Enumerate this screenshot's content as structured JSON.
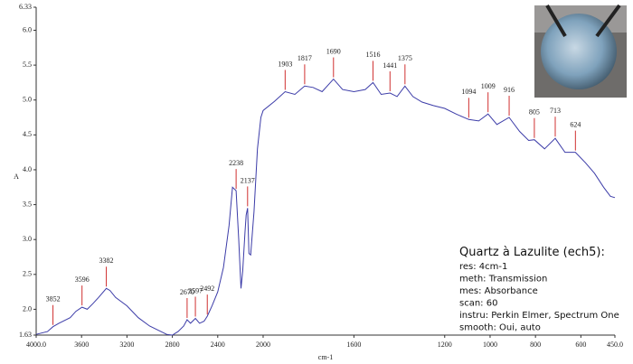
{
  "chart_data": {
    "type": "line",
    "y_label": "A",
    "x_label": "cm-1",
    "x": [
      4000,
      3900,
      3852,
      3800,
      3700,
      3650,
      3596,
      3550,
      3500,
      3450,
      3382,
      3350,
      3300,
      3200,
      3100,
      3000,
      2900,
      2850,
      2800,
      2750,
      2700,
      2670,
      2640,
      2597,
      2560,
      2520,
      2492,
      2450,
      2400,
      2350,
      2300,
      2270,
      2238,
      2215,
      2195,
      2180,
      2160,
      2150,
      2137,
      2125,
      2110,
      2080,
      2050,
      2020,
      2000,
      1950,
      1903,
      1860,
      1817,
      1780,
      1740,
      1690,
      1650,
      1600,
      1550,
      1516,
      1480,
      1441,
      1410,
      1375,
      1340,
      1300,
      1250,
      1200,
      1150,
      1094,
      1050,
      1009,
      970,
      916,
      870,
      830,
      805,
      760,
      713,
      670,
      624,
      580,
      540,
      500,
      470,
      450
    ],
    "series": [
      {
        "color": "#3c3ca8",
        "values": [
          1.64,
          1.68,
          1.75,
          1.8,
          1.88,
          1.97,
          2.03,
          2.0,
          2.08,
          2.17,
          2.3,
          2.27,
          2.17,
          2.05,
          1.88,
          1.76,
          1.68,
          1.64,
          1.63,
          1.68,
          1.76,
          1.85,
          1.8,
          1.87,
          1.8,
          1.83,
          1.9,
          2.05,
          2.25,
          2.6,
          3.2,
          3.75,
          3.7,
          3.0,
          2.3,
          2.55,
          3.1,
          3.35,
          3.45,
          2.8,
          2.78,
          3.4,
          4.3,
          4.75,
          4.85,
          4.98,
          5.12,
          5.08,
          5.2,
          5.18,
          5.12,
          5.3,
          5.15,
          5.12,
          5.15,
          5.25,
          5.08,
          5.1,
          5.05,
          5.2,
          5.05,
          4.97,
          4.92,
          4.88,
          4.8,
          4.72,
          4.7,
          4.8,
          4.65,
          4.75,
          4.55,
          4.42,
          4.43,
          4.3,
          4.45,
          4.25,
          4.25,
          4.1,
          3.95,
          3.75,
          3.62,
          3.6
        ]
      }
    ],
    "peaks": [
      3852,
      3596,
      3382,
      2670,
      2597,
      2492,
      2238,
      2137,
      1903,
      1817,
      1690,
      1516,
      1441,
      1375,
      1094,
      1009,
      916,
      805,
      713,
      624
    ],
    "peak_color": "#d03030",
    "xlim": [
      4000,
      450
    ],
    "x_break": 2000,
    "x_break_expansion": 2,
    "xticks": [
      {
        "value": 4000,
        "label": "4000.0"
      },
      3600,
      3200,
      2800,
      2400,
      2000,
      1600,
      1200,
      1000,
      800,
      600,
      {
        "value": 450,
        "label": "450.0"
      }
    ],
    "ylim": [
      1.63,
      6.33
    ],
    "yticks": [
      {
        "value": 6.33,
        "label": "6.33"
      },
      {
        "value": 6,
        "label": "6.0"
      },
      5.5,
      {
        "value": 5,
        "label": "5.0"
      },
      4.5,
      {
        "value": 4,
        "label": "4.0"
      },
      3.5,
      {
        "value": 3,
        "label": "3.0"
      },
      2.5,
      {
        "value": 2,
        "label": "2.0"
      },
      {
        "value": 1.63,
        "label": "1.63"
      }
    ],
    "info": {
      "title": "Quartz à Lazulite (ech5):",
      "lines": [
        "res: 4cm-1",
        "meth: Transmission",
        "mes: Absorbance",
        "scan: 60",
        "instru: Perkin Elmer, Spectrum One",
        "smooth: Oui, auto"
      ]
    }
  }
}
